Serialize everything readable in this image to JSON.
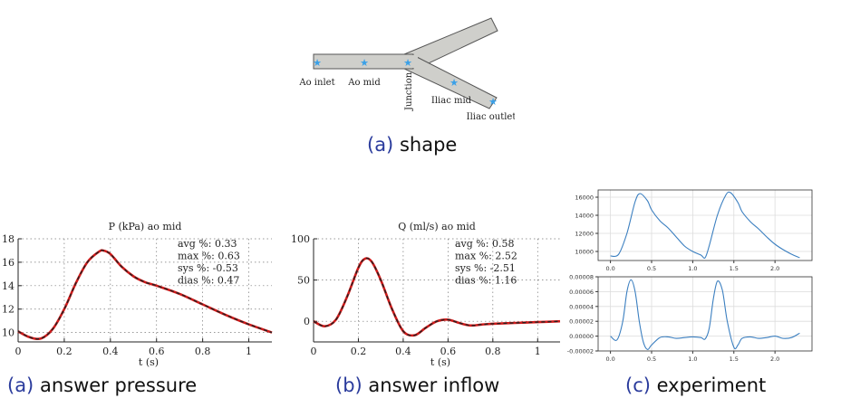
{
  "figure_top": {
    "labels": {
      "ao_inlet": "Ao inlet",
      "ao_mid": "Ao mid",
      "junction": "Junction",
      "iliac_mid": "Iliac mid",
      "iliac_outlet": "Iliac outlet"
    },
    "caption_label": "(a)",
    "caption_text": "shape"
  },
  "colors": {
    "pipe_fill": "#cfcfcb",
    "pipe_edge": "#555555",
    "marker": "#3aa0e8",
    "answer_line": "#d11a1a",
    "answer_dash": "#222222",
    "experiment_line": "#3b7fc0",
    "caption_label": "#2a3b9c"
  },
  "chart_data": [
    {
      "type": "line",
      "title": "P (kPa) ao mid",
      "xlabel": "t (s)",
      "ylabel": "",
      "xlim": [
        0,
        1.1
      ],
      "ylim": [
        9.2,
        18
      ],
      "xticks": [
        "0",
        "0.2",
        "0.4",
        "0.6",
        "0.8",
        "1"
      ],
      "yticks": [
        "10",
        "12",
        "14",
        "16",
        "18"
      ],
      "grid": true,
      "annotations": [
        "avg %: 0.33",
        "max %: 0.63",
        "sys %: -0.53",
        "dias %: 0.47"
      ],
      "x": [
        0,
        0.05,
        0.1,
        0.15,
        0.2,
        0.25,
        0.3,
        0.35,
        0.37,
        0.4,
        0.45,
        0.5,
        0.55,
        0.6,
        0.7,
        0.8,
        0.9,
        1.0,
        1.1
      ],
      "values": [
        10.1,
        9.6,
        9.5,
        10.3,
        12.0,
        14.2,
        16.0,
        16.9,
        17.0,
        16.7,
        15.6,
        14.8,
        14.3,
        14.0,
        13.3,
        12.4,
        11.5,
        10.7,
        10.0
      ],
      "caption_label": "(a)",
      "caption_text": "answer pressure"
    },
    {
      "type": "line",
      "title": "Q (ml/s) ao mid",
      "xlabel": "t (s)",
      "ylabel": "",
      "xlim": [
        0,
        1.1
      ],
      "ylim": [
        -25,
        100
      ],
      "xticks": [
        "0",
        "0.2",
        "0.4",
        "0.6",
        "0.8",
        "1"
      ],
      "yticks": [
        "0",
        "50",
        "100"
      ],
      "grid": true,
      "annotations": [
        "avg %: 0.58",
        "max %: 2.52",
        "sys %: -2.51",
        "dias %: 1.16"
      ],
      "x": [
        0,
        0.05,
        0.1,
        0.15,
        0.2,
        0.23,
        0.26,
        0.3,
        0.35,
        0.4,
        0.45,
        0.5,
        0.55,
        0.6,
        0.65,
        0.7,
        0.75,
        0.8,
        0.9,
        1.0,
        1.1
      ],
      "values": [
        0,
        -6,
        2,
        30,
        65,
        76,
        72,
        50,
        15,
        -12,
        -17,
        -8,
        0,
        2,
        -2,
        -5,
        -4,
        -3,
        -2,
        -1,
        0
      ],
      "caption_label": "(b)",
      "caption_text": "answer inflow"
    },
    {
      "type": "line",
      "title": "",
      "xlabel": "",
      "ylabel": "",
      "xlim": [
        -0.15,
        2.45
      ],
      "ylim": [
        9000,
        16800
      ],
      "xticks": [
        "0.0",
        "0.5",
        "1.0",
        "1.5",
        "2.0"
      ],
      "yticks": [
        "10000",
        "12000",
        "14000",
        "16000"
      ],
      "grid": true,
      "x": [
        0,
        0.1,
        0.2,
        0.3,
        0.36,
        0.45,
        0.5,
        0.6,
        0.7,
        0.8,
        0.9,
        1.0,
        1.1,
        1.15,
        1.2,
        1.3,
        1.4,
        1.46,
        1.55,
        1.6,
        1.7,
        1.8,
        1.9,
        2.0,
        2.1,
        2.2,
        2.3
      ],
      "values": [
        9500,
        9700,
        12000,
        15500,
        16400,
        15600,
        14600,
        13400,
        12600,
        11600,
        10600,
        10000,
        9600,
        9300,
        10600,
        14000,
        16200,
        16500,
        15400,
        14400,
        13300,
        12500,
        11600,
        10800,
        10200,
        9700,
        9300
      ]
    },
    {
      "type": "line",
      "title": "",
      "xlabel": "",
      "ylabel": "",
      "xlim": [
        -0.15,
        2.45
      ],
      "ylim": [
        -2e-05,
        8e-05
      ],
      "xticks": [
        "0.0",
        "0.5",
        "1.0",
        "1.5",
        "2.0"
      ],
      "yticks": [
        "0.00008",
        "0.00006",
        "0.00004",
        "0.00002",
        "0.00000",
        "-0.00002"
      ],
      "grid": true,
      "x": [
        0,
        0.08,
        0.15,
        0.2,
        0.25,
        0.3,
        0.35,
        0.4,
        0.45,
        0.5,
        0.6,
        0.7,
        0.8,
        0.9,
        1.0,
        1.1,
        1.15,
        1.2,
        1.25,
        1.3,
        1.36,
        1.42,
        1.5,
        1.55,
        1.6,
        1.7,
        1.8,
        1.9,
        2.0,
        2.1,
        2.2,
        2.3
      ],
      "values": [
        0.0,
        -5e-06,
        2e-05,
        6e-05,
        7.6e-05,
        6e-05,
        2e-05,
        -8e-06,
        -1.8e-05,
        -1.2e-05,
        -2e-06,
        -1e-06,
        -3e-06,
        -2e-06,
        -1e-06,
        -2e-06,
        -4e-06,
        1e-05,
        5e-05,
        7.4e-05,
        6.2e-05,
        2e-05,
        -1.5e-05,
        -1.2e-05,
        -3e-06,
        -1e-06,
        -3e-06,
        -2e-06,
        0.0,
        -3e-06,
        -2e-06,
        4e-06
      ],
      "caption_label": "(c)",
      "caption_text": "experiment"
    }
  ]
}
